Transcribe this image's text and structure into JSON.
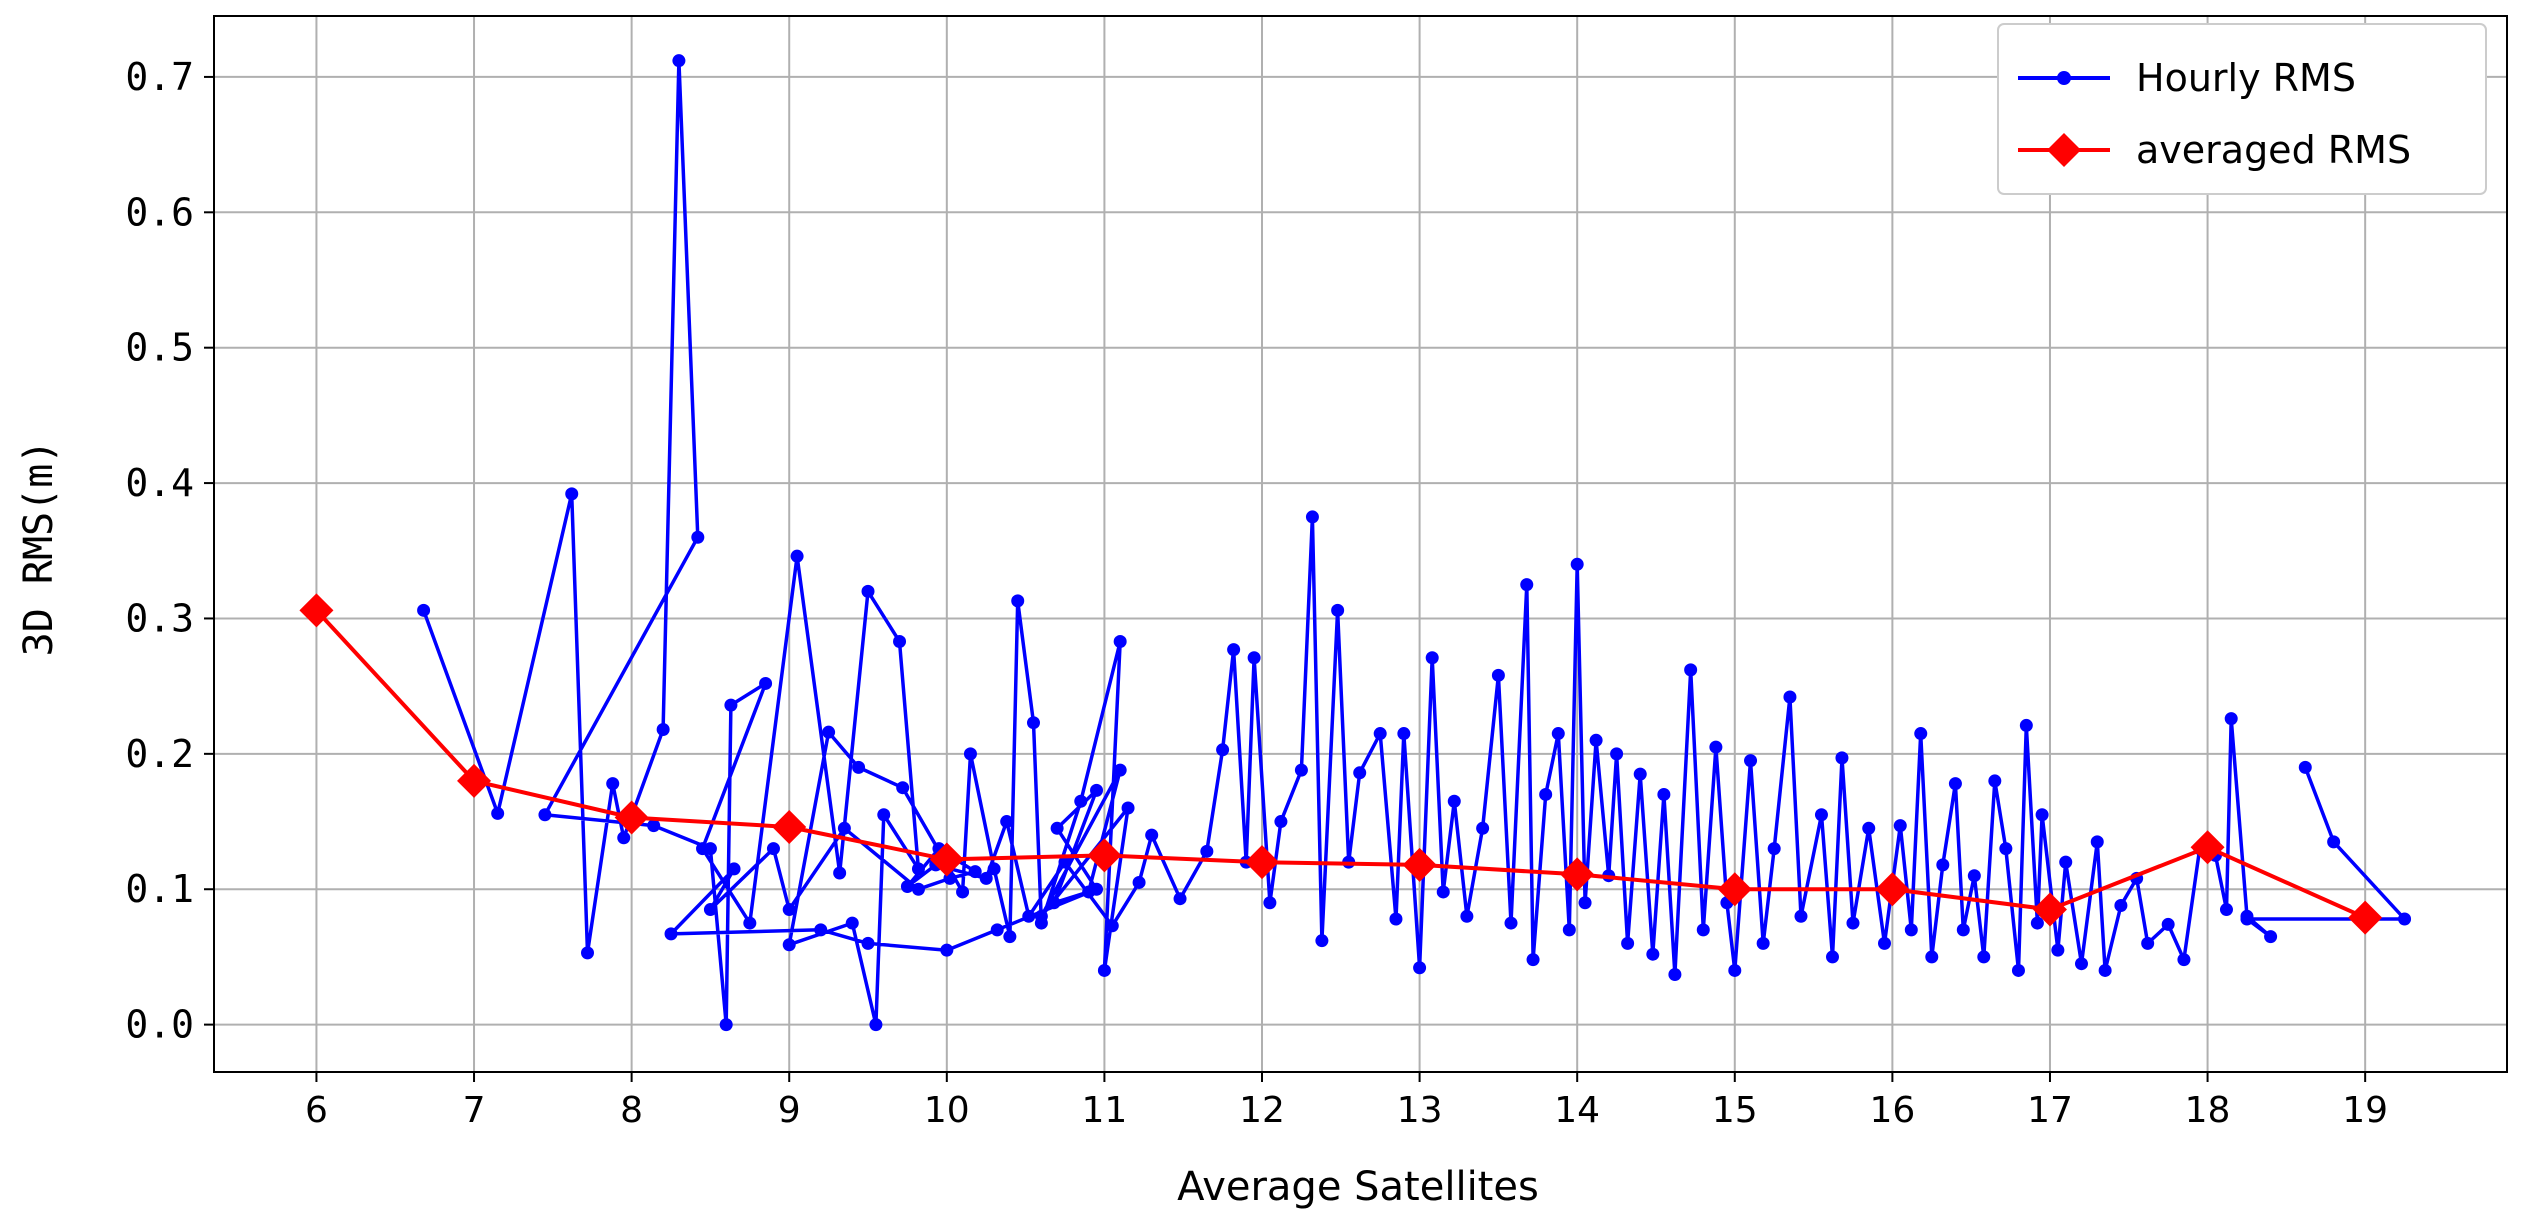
{
  "chart_data": {
    "type": "line",
    "title": "",
    "xlabel": "Average Satellites",
    "ylabel": "3D RMS(m)",
    "xlim": [
      5.35,
      19.9
    ],
    "ylim": [
      -0.035,
      0.745
    ],
    "xticks": [
      6,
      7,
      8,
      9,
      10,
      11,
      12,
      13,
      14,
      15,
      16,
      17,
      18,
      19
    ],
    "yticks": [
      0.0,
      0.1,
      0.2,
      0.3,
      0.4,
      0.5,
      0.6,
      0.7
    ],
    "xtick_labels": [
      "6",
      "7",
      "8",
      "9",
      "10",
      "11",
      "12",
      "13",
      "14",
      "15",
      "16",
      "17",
      "18",
      "19"
    ],
    "ytick_labels": [
      "0.0",
      "0.1",
      "0.2",
      "0.3",
      "0.4",
      "0.5",
      "0.6",
      "0.7"
    ],
    "grid": true,
    "legend_position": "top-right",
    "series": [
      {
        "name": "Hourly RMS",
        "color": "#0000ff",
        "marker": "circle",
        "points": [
          [
            6.68,
            0.306
          ],
          [
            7.15,
            0.156
          ],
          [
            7.62,
            0.392
          ],
          [
            7.72,
            0.053
          ],
          [
            7.88,
            0.178
          ],
          [
            7.95,
            0.138
          ],
          [
            8.2,
            0.218
          ],
          [
            8.3,
            0.712
          ],
          [
            8.42,
            0.36
          ],
          [
            7.45,
            0.155
          ],
          [
            8.14,
            0.147
          ],
          [
            8.5,
            0.13
          ],
          [
            8.6,
            0.0
          ],
          [
            8.63,
            0.236
          ],
          [
            8.85,
            0.252
          ],
          [
            8.45,
            0.13
          ],
          [
            8.75,
            0.075
          ],
          [
            9.05,
            0.346
          ],
          [
            9.32,
            0.112
          ],
          [
            9.5,
            0.32
          ],
          [
            9.7,
            0.283
          ],
          [
            9.82,
            0.115
          ],
          [
            9.6,
            0.155
          ],
          [
            9.55,
            0.0
          ],
          [
            9.4,
            0.075
          ],
          [
            9.0,
            0.059
          ],
          [
            9.25,
            0.216
          ],
          [
            9.44,
            0.19
          ],
          [
            9.72,
            0.175
          ],
          [
            10.1,
            0.098
          ],
          [
            10.15,
            0.2
          ],
          [
            10.3,
            0.115
          ],
          [
            10.4,
            0.065
          ],
          [
            10.45,
            0.313
          ],
          [
            10.55,
            0.223
          ],
          [
            10.6,
            0.075
          ],
          [
            10.85,
            0.165
          ],
          [
            11.1,
            0.283
          ],
          [
            11.0,
            0.04
          ],
          [
            11.15,
            0.16
          ],
          [
            10.6,
            0.08
          ],
          [
            11.1,
            0.188
          ],
          [
            10.9,
            0.098
          ],
          [
            10.68,
            0.09
          ],
          [
            10.95,
            0.173
          ],
          [
            10.7,
            0.145
          ],
          [
            10.95,
            0.1
          ],
          [
            10.32,
            0.07
          ],
          [
            10.0,
            0.055
          ],
          [
            9.5,
            0.06
          ],
          [
            9.2,
            0.07
          ],
          [
            8.25,
            0.067
          ],
          [
            8.65,
            0.115
          ],
          [
            8.5,
            0.085
          ],
          [
            8.9,
            0.13
          ],
          [
            9.0,
            0.085
          ],
          [
            9.35,
            0.145
          ],
          [
            9.82,
            0.1
          ],
          [
            10.02,
            0.108
          ],
          [
            10.18,
            0.113
          ],
          [
            9.95,
            0.13
          ],
          [
            9.75,
            0.102
          ],
          [
            9.93,
            0.118
          ],
          [
            10.25,
            0.108
          ],
          [
            10.38,
            0.15
          ],
          [
            10.52,
            0.08
          ],
          [
            10.75,
            0.12
          ],
          [
            11.05,
            0.073
          ],
          [
            11.22,
            0.105
          ],
          [
            11.3,
            0.14
          ],
          [
            11.48,
            0.093
          ],
          [
            11.65,
            0.128
          ],
          [
            11.75,
            0.203
          ],
          [
            11.82,
            0.277
          ],
          [
            11.9,
            0.12
          ],
          [
            11.95,
            0.271
          ],
          [
            12.05,
            0.09
          ],
          [
            12.12,
            0.15
          ],
          [
            12.25,
            0.188
          ],
          [
            12.32,
            0.375
          ],
          [
            12.38,
            0.062
          ],
          [
            12.48,
            0.306
          ],
          [
            12.55,
            0.12
          ],
          [
            12.62,
            0.186
          ],
          [
            12.75,
            0.215
          ],
          [
            12.85,
            0.078
          ],
          [
            12.9,
            0.215
          ],
          [
            13.0,
            0.042
          ],
          [
            13.08,
            0.271
          ],
          [
            13.15,
            0.098
          ],
          [
            13.22,
            0.165
          ],
          [
            13.3,
            0.08
          ],
          [
            13.4,
            0.145
          ],
          [
            13.5,
            0.258
          ],
          [
            13.58,
            0.075
          ],
          [
            13.68,
            0.325
          ],
          [
            13.72,
            0.048
          ],
          [
            13.8,
            0.17
          ],
          [
            13.88,
            0.215
          ],
          [
            13.95,
            0.07
          ],
          [
            14.0,
            0.34
          ],
          [
            14.05,
            0.09
          ],
          [
            14.12,
            0.21
          ],
          [
            14.2,
            0.11
          ],
          [
            14.25,
            0.2
          ],
          [
            14.32,
            0.06
          ],
          [
            14.4,
            0.185
          ],
          [
            14.48,
            0.052
          ],
          [
            14.55,
            0.17
          ],
          [
            14.62,
            0.037
          ],
          [
            14.72,
            0.262
          ],
          [
            14.8,
            0.07
          ],
          [
            14.88,
            0.205
          ],
          [
            14.95,
            0.09
          ],
          [
            15.0,
            0.04
          ],
          [
            15.1,
            0.195
          ],
          [
            15.18,
            0.06
          ],
          [
            15.25,
            0.13
          ],
          [
            15.35,
            0.242
          ],
          [
            15.42,
            0.08
          ],
          [
            15.55,
            0.155
          ],
          [
            15.62,
            0.05
          ],
          [
            15.68,
            0.197
          ],
          [
            15.75,
            0.075
          ],
          [
            15.85,
            0.145
          ],
          [
            15.95,
            0.06
          ],
          [
            16.05,
            0.147
          ],
          [
            16.12,
            0.07
          ],
          [
            16.18,
            0.215
          ],
          [
            16.25,
            0.05
          ],
          [
            16.32,
            0.118
          ],
          [
            16.4,
            0.178
          ],
          [
            16.45,
            0.07
          ],
          [
            16.52,
            0.11
          ],
          [
            16.58,
            0.05
          ],
          [
            16.65,
            0.18
          ],
          [
            16.72,
            0.13
          ],
          [
            16.8,
            0.04
          ],
          [
            16.85,
            0.221
          ],
          [
            16.92,
            0.075
          ],
          [
            16.95,
            0.155
          ],
          [
            17.05,
            0.055
          ],
          [
            17.1,
            0.12
          ],
          [
            17.2,
            0.045
          ],
          [
            17.3,
            0.135
          ],
          [
            17.35,
            0.04
          ],
          [
            17.45,
            0.088
          ],
          [
            17.55,
            0.108
          ],
          [
            17.62,
            0.06
          ],
          [
            17.75,
            0.074
          ],
          [
            17.85,
            0.048
          ],
          [
            17.95,
            0.13
          ],
          [
            18.05,
            0.125
          ],
          [
            18.12,
            0.085
          ],
          [
            18.15,
            0.226
          ],
          [
            18.25,
            0.08
          ],
          [
            18.4,
            0.065
          ],
          [
            18.25,
            0.078
          ],
          [
            19.0,
            0.078
          ],
          [
            19.25,
            0.078
          ],
          [
            18.8,
            0.135
          ],
          [
            18.62,
            0.19
          ]
        ]
      },
      {
        "name": "averaged RMS",
        "color": "#ff0000",
        "marker": "diamond",
        "points": [
          [
            6,
            0.306
          ],
          [
            7,
            0.18
          ],
          [
            8,
            0.153
          ],
          [
            9,
            0.146
          ],
          [
            10,
            0.122
          ],
          [
            11,
            0.125
          ],
          [
            12,
            0.12
          ],
          [
            13,
            0.118
          ],
          [
            14,
            0.111
          ],
          [
            15,
            0.1
          ],
          [
            16,
            0.1
          ],
          [
            17,
            0.085
          ],
          [
            18,
            0.131
          ],
          [
            19,
            0.079
          ]
        ]
      }
    ]
  }
}
